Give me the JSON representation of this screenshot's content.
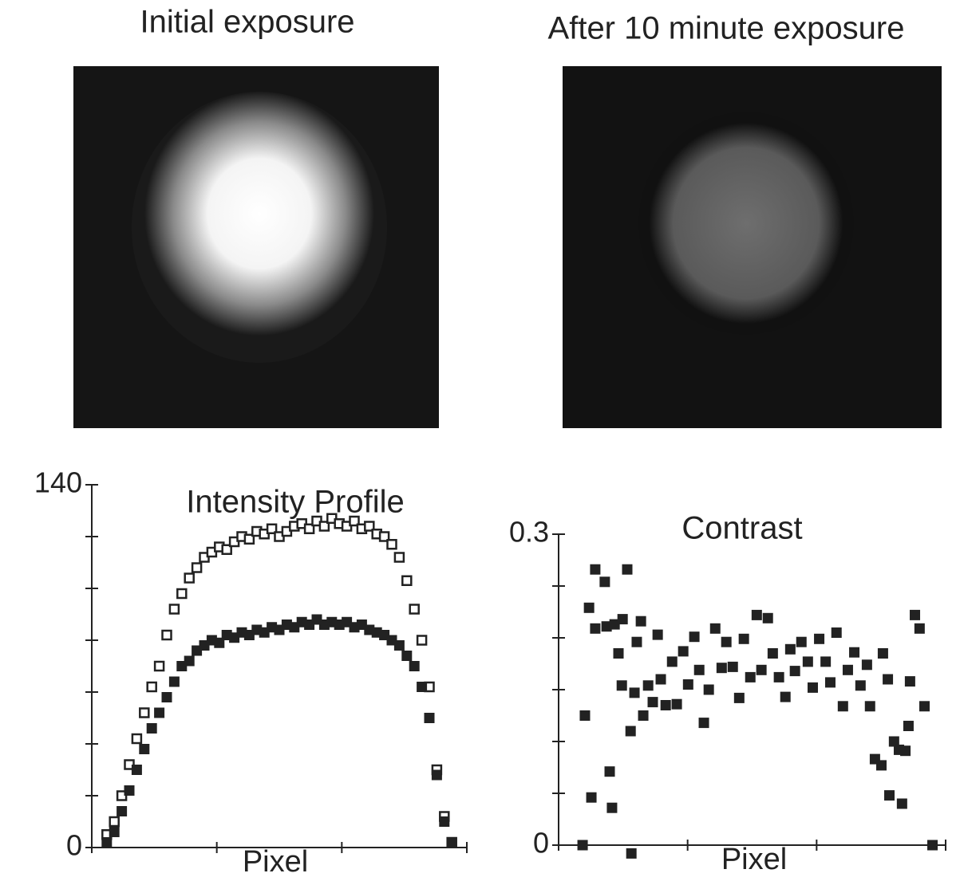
{
  "images": [
    {
      "title": "Initial exposure"
    },
    {
      "title": "After 10 minute exposure"
    }
  ],
  "chart_data": [
    {
      "type": "scatter",
      "title": "Intensity Profile",
      "x_label": "Pixel",
      "xlim": [
        0,
        150
      ],
      "minor_xticks": [
        50,
        100
      ],
      "ylim": [
        0,
        140
      ],
      "yticks": [
        0,
        140
      ],
      "minor_yticks": [
        20,
        40,
        60,
        80,
        100,
        120
      ],
      "series": [
        {
          "marker": "open-square",
          "color": "#222222",
          "x": [
            6,
            9,
            12,
            15,
            18,
            21,
            24,
            27,
            30,
            33,
            36,
            39,
            42,
            45,
            48,
            51,
            54,
            57,
            60,
            63,
            66,
            69,
            72,
            75,
            78,
            81,
            84,
            87,
            90,
            93,
            96,
            99,
            102,
            105,
            108,
            111,
            114,
            117,
            120,
            123,
            126,
            129,
            132,
            135,
            138,
            141,
            144
          ],
          "values": [
            5,
            10,
            20,
            32,
            42,
            52,
            62,
            70,
            82,
            92,
            98,
            104,
            108,
            112,
            114,
            116,
            115,
            118,
            120,
            119,
            122,
            121,
            123,
            120,
            122,
            124,
            125,
            123,
            126,
            124,
            127,
            125,
            124,
            126,
            123,
            124,
            121,
            120,
            117,
            112,
            103,
            92,
            80,
            62,
            30,
            12,
            2
          ]
        },
        {
          "marker": "filled-square",
          "color": "#222222",
          "x": [
            6,
            9,
            12,
            15,
            18,
            21,
            24,
            27,
            30,
            33,
            36,
            39,
            42,
            45,
            48,
            51,
            54,
            57,
            60,
            63,
            66,
            69,
            72,
            75,
            78,
            81,
            84,
            87,
            90,
            93,
            96,
            99,
            102,
            105,
            108,
            111,
            114,
            117,
            120,
            123,
            126,
            129,
            132,
            135,
            138,
            141,
            144
          ],
          "values": [
            2,
            6,
            14,
            22,
            30,
            38,
            46,
            52,
            58,
            64,
            70,
            72,
            76,
            78,
            80,
            79,
            82,
            81,
            83,
            82,
            84,
            83,
            85,
            84,
            86,
            85,
            87,
            86,
            88,
            86,
            87,
            86,
            87,
            85,
            86,
            84,
            83,
            82,
            80,
            78,
            74,
            70,
            62,
            50,
            28,
            10,
            2
          ]
        }
      ]
    },
    {
      "type": "scatter",
      "title": "Contrast",
      "x_label": "Pixel",
      "xlim": [
        0,
        150
      ],
      "minor_xticks": [
        50,
        100
      ],
      "ylim": [
        0,
        0.3
      ],
      "yticks": [
        0,
        0.3
      ],
      "minor_yticks": [
        0.05,
        0.1,
        0.15,
        0.2,
        0.25
      ],
      "series": [
        {
          "marker": "filled-square",
          "color": "#222222",
          "x": [
            9.3,
            10.2,
            11.8,
            12.7,
            14.2,
            14.2,
            17.9,
            18.6,
            19.8,
            20.7,
            21.7,
            23.2,
            24.5,
            24.8,
            26.6,
            27.9,
            28.2,
            29.4,
            30.3,
            31.9,
            32.8,
            34.7,
            36.5,
            38.4,
            39.6,
            41.5,
            44,
            45.8,
            48.3,
            50.2,
            52.6,
            54.5,
            56.3,
            58.2,
            60.7,
            63.2,
            65,
            67.5,
            70,
            71.8,
            74.3,
            76.8,
            78.6,
            81.1,
            83,
            85.4,
            87.9,
            89.8,
            91.6,
            94.1,
            96.6,
            98.5,
            101,
            103.5,
            105.3,
            107.7,
            110.2,
            112.1,
            114.6,
            117,
            119.5,
            120.7,
            122.6,
            125.1,
            125.7,
            127.6,
            128.2,
            130,
            131.9,
            133.1,
            134.4,
            135.6,
            136.2,
            138.1,
            139.9,
            141.8,
            144.9
          ],
          "values": [
            0,
            0.125,
            0.229,
            0.046,
            0.266,
            0.209,
            0.254,
            0.211,
            0.071,
            0.036,
            0.213,
            0.185,
            0.154,
            0.218,
            0.266,
            0.11,
            -0.008,
            0.147,
            0.196,
            0.216,
            0.125,
            0.154,
            0.138,
            0.203,
            0.16,
            0.135,
            0.177,
            0.136,
            0.187,
            0.155,
            0.201,
            0.169,
            0.118,
            0.15,
            0.209,
            0.171,
            0.196,
            0.172,
            0.142,
            0.199,
            0.162,
            0.222,
            0.169,
            0.219,
            0.185,
            0.162,
            0.143,
            0.189,
            0.168,
            0.196,
            0.177,
            0.152,
            0.199,
            0.177,
            0.157,
            0.205,
            0.134,
            0.169,
            0.186,
            0.154,
            0.174,
            0.134,
            0.083,
            0.077,
            0.185,
            0.16,
            0.048,
            0.1,
            0.092,
            0.04,
            0.091,
            0.115,
            0.158,
            0.222,
            0.209,
            0.134,
            0
          ]
        }
      ]
    }
  ]
}
